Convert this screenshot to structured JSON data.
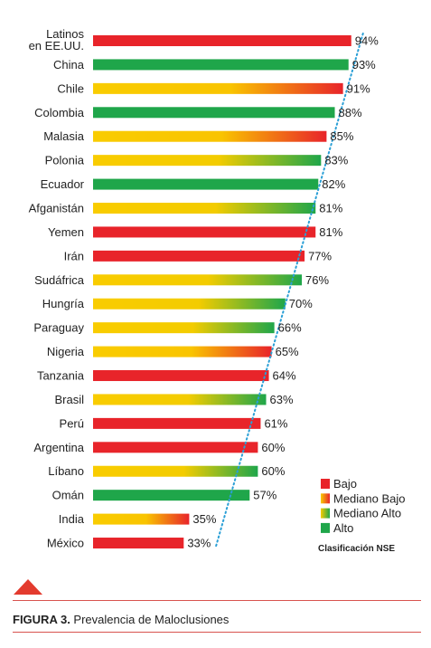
{
  "chart_data": {
    "type": "bar",
    "orientation": "horizontal",
    "categories": [
      "Latinos en EE.UU.",
      "China",
      "Chile",
      "Colombia",
      "Malasia",
      "Polonia",
      "Ecuador",
      "Afganistán",
      "Yemen",
      "Irán",
      "Sudáfrica",
      "Hungría",
      "Paraguay",
      "Nigeria",
      "Tanzania",
      "Brasil",
      "Perú",
      "Argentina",
      "Líbano",
      "Omán",
      "India",
      "México"
    ],
    "category_lines": [
      [
        "Latinos",
        "en EE.UU."
      ],
      [
        "China"
      ],
      [
        "Chile"
      ],
      [
        "Colombia"
      ],
      [
        "Malasia"
      ],
      [
        "Polonia"
      ],
      [
        "Ecuador"
      ],
      [
        "Afganistán"
      ],
      [
        "Yemen"
      ],
      [
        "Irán"
      ],
      [
        "Sudáfrica"
      ],
      [
        "Hungría"
      ],
      [
        "Paraguay"
      ],
      [
        "Nigeria"
      ],
      [
        "Tanzania"
      ],
      [
        "Brasil"
      ],
      [
        "Perú"
      ],
      [
        "Argentina"
      ],
      [
        "Líbano"
      ],
      [
        "Omán"
      ],
      [
        "India"
      ],
      [
        "México"
      ]
    ],
    "values": [
      94,
      93,
      91,
      88,
      85,
      83,
      82,
      81,
      81,
      77,
      76,
      70,
      66,
      65,
      64,
      63,
      61,
      60,
      60,
      57,
      35,
      33
    ],
    "value_labels": [
      "94%",
      "93%",
      "91%",
      "88%",
      "85%",
      "83%",
      "82%",
      "81%",
      "81%",
      "77%",
      "76%",
      "70%",
      "66%",
      "65%",
      "64%",
      "63%",
      "61%",
      "60%",
      "60%",
      "57%",
      "35%",
      "33%"
    ],
    "nse_class": [
      "bajo",
      "alto",
      "mediano_bajo",
      "alto",
      "mediano_bajo",
      "mediano_alto",
      "alto",
      "mediano_alto",
      "bajo",
      "bajo",
      "mediano_alto",
      "mediano_alto",
      "mediano_alto",
      "mediano_bajo",
      "bajo",
      "mediano_alto",
      "bajo",
      "bajo",
      "mediano_alto",
      "alto",
      "mediano_bajo",
      "bajo"
    ],
    "legend": {
      "title": "Clasificación NSE",
      "placement": "bottom-right",
      "items": [
        {
          "key": "bajo",
          "label": "Bajo"
        },
        {
          "key": "mediano_bajo",
          "label": "Mediano Bajo"
        },
        {
          "key": "mediano_alto",
          "label": "Mediano Alto"
        },
        {
          "key": "alto",
          "label": "Alto"
        }
      ]
    },
    "colors": {
      "red": "#e8242a",
      "yellow": "#f9cc00",
      "green": "#1fa64a",
      "trend": "#2a9fd6"
    },
    "grid": false,
    "trend_line": "dotted"
  },
  "caption": {
    "prefix": "FIGURA 3.",
    "text": " Prevalencia de Maloclusiones"
  }
}
